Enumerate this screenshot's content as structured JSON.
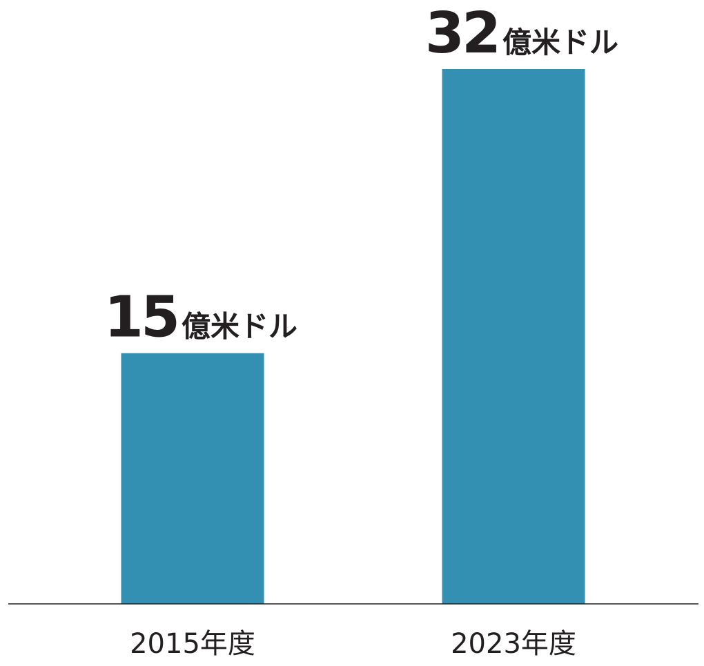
{
  "chart_data": {
    "type": "bar",
    "categories": [
      "2015年度",
      "2023年度"
    ],
    "values": [
      15,
      32
    ],
    "value_labels": [
      {
        "number": "15",
        "unit": "億米ドル"
      },
      {
        "number": "32",
        "unit": "億米ドル"
      }
    ],
    "unit": "億米ドル",
    "ylim": [
      0,
      32
    ],
    "grid": false,
    "legend": "none",
    "title": "",
    "xlabel": "",
    "ylabel": "",
    "bar_color": "#3490b3",
    "axis_color": "#231f20",
    "text_color": "#231f20"
  }
}
